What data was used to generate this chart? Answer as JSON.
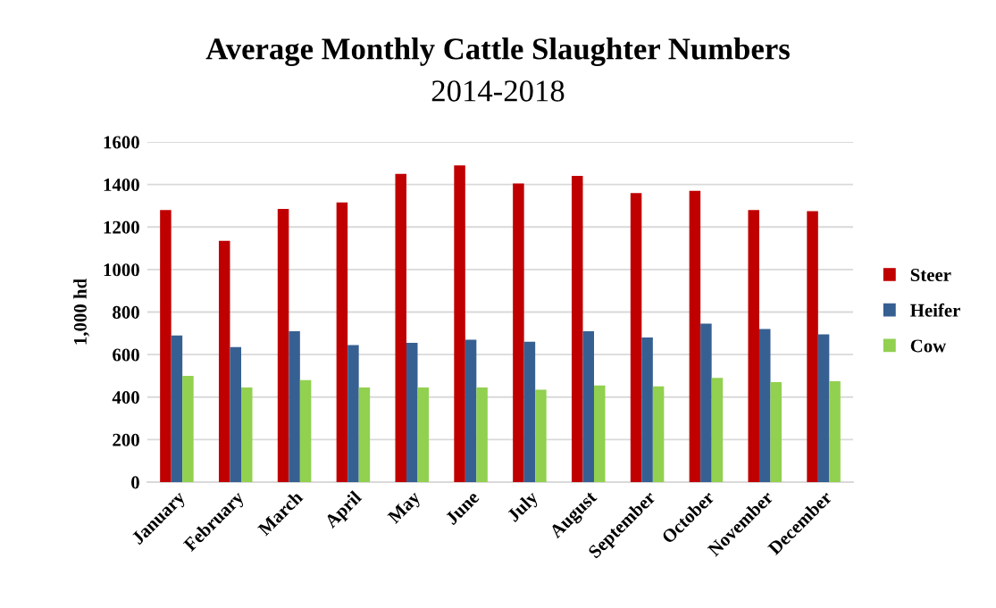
{
  "chart_data": {
    "type": "bar",
    "title": "Average Monthly Cattle Slaughter Numbers",
    "subtitle": "2014-2018",
    "ylabel": "1,000 hd",
    "categories": [
      "January",
      "February",
      "March",
      "April",
      "May",
      "June",
      "July",
      "August",
      "September",
      "October",
      "November",
      "December"
    ],
    "series": [
      {
        "name": "Steer",
        "color": "#c00000",
        "values": [
          1280,
          1135,
          1285,
          1315,
          1450,
          1490,
          1405,
          1440,
          1360,
          1370,
          1280,
          1275
        ]
      },
      {
        "name": "Heifer",
        "color": "#376092",
        "values": [
          690,
          635,
          710,
          645,
          655,
          670,
          660,
          710,
          680,
          745,
          720,
          695
        ]
      },
      {
        "name": "Cow",
        "color": "#92d050",
        "values": [
          500,
          445,
          480,
          445,
          445,
          445,
          435,
          455,
          450,
          490,
          470,
          475
        ]
      }
    ],
    "ylim": [
      0,
      1600
    ],
    "yticks": [
      0,
      200,
      400,
      600,
      800,
      1000,
      1200,
      1400,
      1600
    ],
    "grid": "y",
    "legend": "right"
  }
}
